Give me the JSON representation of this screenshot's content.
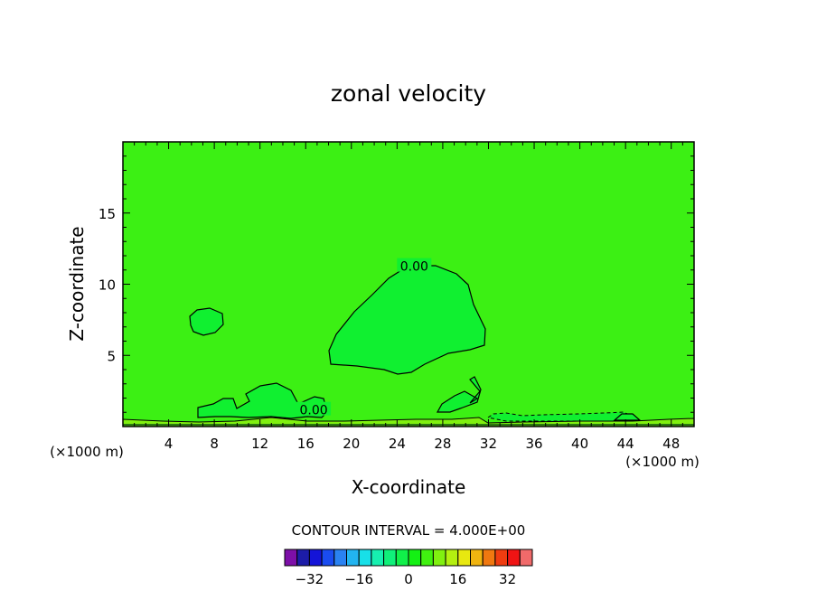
{
  "chart_data": {
    "type": "contour",
    "title": "zonal velocity",
    "xlabel": "X-coordinate",
    "ylabel": "Z-coordinate",
    "x_unit_left": "(×1000 m)",
    "x_unit_right": "(×1000 m)",
    "xlim": [
      0,
      50
    ],
    "ylim": [
      0,
      20
    ],
    "x_ticks": [
      4,
      8,
      12,
      16,
      20,
      24,
      28,
      32,
      36,
      40,
      44,
      48
    ],
    "y_ticks": [
      5,
      10,
      15
    ],
    "contour_interval_text": "CONTOUR INTERVAL = 4.000E+00",
    "contour_labels": [
      {
        "text": "0.00",
        "x": 25.5,
        "z": 11.2
      },
      {
        "text": "0.00",
        "x": 16.7,
        "z": 1.1
      }
    ],
    "colorbar": {
      "levels": [
        -40,
        -36,
        -32,
        -28,
        -24,
        -20,
        -16,
        -12,
        -8,
        -4,
        0,
        4,
        8,
        12,
        16,
        20,
        24,
        28,
        32,
        36,
        40
      ],
      "colors": [
        "#7d0fa8",
        "#1c1ca8",
        "#1414d8",
        "#1a4cf0",
        "#2a82f2",
        "#22b4f0",
        "#18e0e8",
        "#17f0b0",
        "#10f07a",
        "#10f04a",
        "#14f014",
        "#40f010",
        "#80f010",
        "#b4f010",
        "#e8e810",
        "#f0b410",
        "#f07810",
        "#f03c10",
        "#f01414",
        "#f06a6a"
      ],
      "tick_labels": [
        {
          "text": "−32",
          "value": -32
        },
        {
          "text": "−16",
          "value": -16
        },
        {
          "text": "0",
          "value": 0
        },
        {
          "text": "16",
          "value": 16
        },
        {
          "text": "32",
          "value": 32
        }
      ]
    },
    "colors": {
      "background_field": "#3cf014",
      "positive_region": "#10f030",
      "near_surface": "#80f010"
    }
  }
}
